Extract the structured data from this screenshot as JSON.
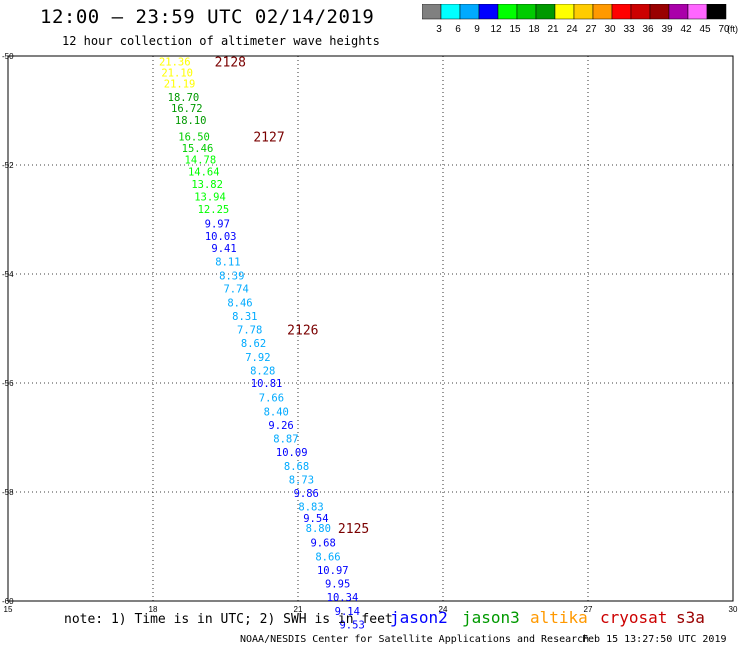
{
  "header": {
    "title": "12:00 – 23:59 UTC 02/14/2019",
    "subtitle": "12 hour collection of altimeter wave heights"
  },
  "colorbar": {
    "colors": [
      "#808080",
      "#00ffff",
      "#00aaff",
      "#0000ff",
      "#00ff00",
      "#00cc00",
      "#009900",
      "#ffff00",
      "#ffcc00",
      "#ff9900",
      "#ff0000",
      "#cc0000",
      "#990000",
      "#aa00aa",
      "#ff66ff",
      "#000000"
    ],
    "labels": [
      "3",
      "6",
      "9",
      "12",
      "15",
      "18",
      "21",
      "24",
      "27",
      "30",
      "33",
      "36",
      "39",
      "42",
      "45",
      "70"
    ],
    "unit": "(ft)"
  },
  "axes": {
    "x_ticks": [
      "15",
      "18",
      "21",
      "24",
      "27",
      "30"
    ],
    "y_ticks": [
      "-50",
      "-52",
      "-54",
      "-56",
      "-58",
      "-60"
    ]
  },
  "chart_data": {
    "type": "scatter",
    "xlim": [
      15,
      30
    ],
    "ylim": [
      -60,
      -50
    ],
    "x_ticks": [
      15,
      18,
      21,
      24,
      27,
      30
    ],
    "y_ticks": [
      -50,
      -52,
      -54,
      -56,
      -58,
      -60
    ],
    "grid": true,
    "points": [
      {
        "lon": 18.45,
        "lat": -50.1,
        "label": "21.36",
        "color": "#ffff00"
      },
      {
        "lon": 18.5,
        "lat": -50.3,
        "label": "21.10",
        "color": "#ffff00"
      },
      {
        "lon": 18.55,
        "lat": -50.5,
        "label": "21.19",
        "color": "#ffff00"
      },
      {
        "lon": 18.63,
        "lat": -50.75,
        "label": "18.70",
        "color": "#009900"
      },
      {
        "lon": 18.7,
        "lat": -50.95,
        "label": "16.72",
        "color": "#009900"
      },
      {
        "lon": 18.78,
        "lat": -51.17,
        "label": "18.10",
        "color": "#009900"
      },
      {
        "lon": 18.85,
        "lat": -51.48,
        "label": "16.50",
        "color": "#00cc00"
      },
      {
        "lon": 18.92,
        "lat": -51.69,
        "label": "15.46",
        "color": "#00cc00"
      },
      {
        "lon": 18.98,
        "lat": -51.9,
        "label": "14.78",
        "color": "#00ff00"
      },
      {
        "lon": 19.05,
        "lat": -52.12,
        "label": "14.64",
        "color": "#00ff00"
      },
      {
        "lon": 19.12,
        "lat": -52.35,
        "label": "13.82",
        "color": "#00ff00"
      },
      {
        "lon": 19.18,
        "lat": -52.58,
        "label": "13.94",
        "color": "#00ff00"
      },
      {
        "lon": 19.25,
        "lat": -52.81,
        "label": "12.25",
        "color": "#00ff00"
      },
      {
        "lon": 19.33,
        "lat": -53.07,
        "label": "9.97",
        "color": "#0000ff"
      },
      {
        "lon": 19.4,
        "lat": -53.3,
        "label": "10.03",
        "color": "#0000ff"
      },
      {
        "lon": 19.47,
        "lat": -53.52,
        "label": "9.41",
        "color": "#0000ff"
      },
      {
        "lon": 19.55,
        "lat": -53.77,
        "label": "8.11",
        "color": "#00aaff"
      },
      {
        "lon": 19.63,
        "lat": -54.03,
        "label": "8.39",
        "color": "#00aaff"
      },
      {
        "lon": 19.72,
        "lat": -54.27,
        "label": "7.74",
        "color": "#00aaff"
      },
      {
        "lon": 19.8,
        "lat": -54.52,
        "label": "8.46",
        "color": "#00aaff"
      },
      {
        "lon": 19.9,
        "lat": -54.77,
        "label": "8.31",
        "color": "#00aaff"
      },
      {
        "lon": 20.0,
        "lat": -55.02,
        "label": "7.78",
        "color": "#00aaff"
      },
      {
        "lon": 20.08,
        "lat": -55.27,
        "label": "8.62",
        "color": "#00aaff"
      },
      {
        "lon": 20.17,
        "lat": -55.52,
        "label": "7.92",
        "color": "#00aaff"
      },
      {
        "lon": 20.27,
        "lat": -55.77,
        "label": "8.28",
        "color": "#00aaff"
      },
      {
        "lon": 20.35,
        "lat": -56.0,
        "label": "10.81",
        "color": "#0000ff"
      },
      {
        "lon": 20.45,
        "lat": -56.27,
        "label": "7.66",
        "color": "#00aaff"
      },
      {
        "lon": 20.55,
        "lat": -56.52,
        "label": "8.40",
        "color": "#00aaff"
      },
      {
        "lon": 20.65,
        "lat": -56.77,
        "label": "9.26",
        "color": "#0000ff"
      },
      {
        "lon": 20.75,
        "lat": -57.02,
        "label": "8.87",
        "color": "#00aaff"
      },
      {
        "lon": 20.87,
        "lat": -57.27,
        "label": "10.09",
        "color": "#0000ff"
      },
      {
        "lon": 20.97,
        "lat": -57.52,
        "label": "8.68",
        "color": "#00aaff"
      },
      {
        "lon": 21.07,
        "lat": -57.77,
        "label": "8.73",
        "color": "#00aaff"
      },
      {
        "lon": 21.17,
        "lat": -58.02,
        "label": "9.86",
        "color": "#0000ff"
      },
      {
        "lon": 21.27,
        "lat": -58.27,
        "label": "8.83",
        "color": "#00aaff"
      },
      {
        "lon": 21.37,
        "lat": -58.48,
        "label": "9.54",
        "color": "#0000ff"
      },
      {
        "lon": 21.42,
        "lat": -58.66,
        "label": "8.80",
        "color": "#00aaff"
      },
      {
        "lon": 21.52,
        "lat": -58.93,
        "label": "9.68",
        "color": "#0000ff"
      },
      {
        "lon": 21.62,
        "lat": -59.18,
        "label": "8.66",
        "color": "#00aaff"
      },
      {
        "lon": 21.72,
        "lat": -59.43,
        "label": "10.97",
        "color": "#0000ff"
      },
      {
        "lon": 21.82,
        "lat": -59.68,
        "label": "9.95",
        "color": "#0000ff"
      },
      {
        "lon": 21.92,
        "lat": -59.93,
        "label": "10.34",
        "color": "#0000ff"
      },
      {
        "lon": 22.02,
        "lat": -60.18,
        "label": "9.14",
        "color": "#0000ff"
      },
      {
        "lon": 22.12,
        "lat": -60.43,
        "label": "9.53",
        "color": "#0000ff"
      }
    ],
    "pass_labels": [
      {
        "lon": 19.6,
        "lat": -50.1,
        "label": "2128"
      },
      {
        "lon": 20.4,
        "lat": -51.48,
        "label": "2127"
      },
      {
        "lon": 21.1,
        "lat": -55.02,
        "label": "2126"
      },
      {
        "lon": 22.15,
        "lat": -58.66,
        "label": "2125"
      }
    ]
  },
  "note": {
    "text": "note: 1) Time is in UTC; 2) SWH is in feet"
  },
  "missions": [
    {
      "name": "jason2",
      "color": "#0000ff"
    },
    {
      "name": "jason3",
      "color": "#009900"
    },
    {
      "name": "altika",
      "color": "#ff9900"
    },
    {
      "name": "cryosat",
      "color": "#cc0000"
    },
    {
      "name": "s3a",
      "color": "#990000"
    }
  ],
  "footer": {
    "credit": "NOAA/NESDIS Center for Satellite Applications and Research",
    "timestamp": "Feb 15 13:27:50 UTC 2019"
  }
}
